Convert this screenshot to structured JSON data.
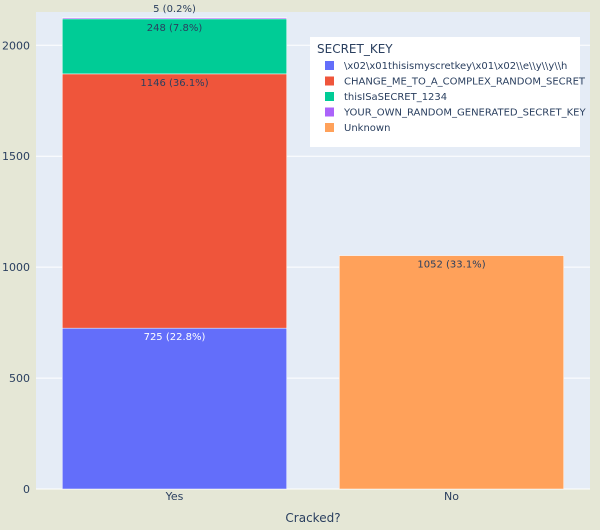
{
  "chart_data": {
    "type": "bar",
    "stacked": true,
    "categories": [
      "Yes",
      "No"
    ],
    "xlabel": "Cracked?",
    "ylabel": "",
    "ylim": [
      0,
      2150
    ],
    "yticks": [
      0,
      500,
      1000,
      1500,
      2000
    ],
    "grid": true,
    "legend": {
      "title": "SECRET_KEY",
      "placement": "top-right"
    },
    "series": [
      {
        "name": "\\x02\\x01thisismyscretkey\\x01\\x02\\\\e\\\\y\\\\y\\\\h",
        "color": "#636efa",
        "values": [
          725,
          0
        ],
        "labels": [
          "725 (22.8%)",
          ""
        ]
      },
      {
        "name": "CHANGE_ME_TO_A_COMPLEX_RANDOM_SECRET",
        "color": "#ef553b",
        "values": [
          1146,
          0
        ],
        "labels": [
          "1146 (36.1%)",
          ""
        ]
      },
      {
        "name": "thisISaSECRET_1234",
        "color": "#00cc96",
        "values": [
          248,
          0
        ],
        "labels": [
          "248 (7.8%)",
          ""
        ]
      },
      {
        "name": "YOUR_OWN_RANDOM_GENERATED_SECRET_KEY",
        "color": "#ab63fa",
        "values": [
          5,
          0
        ],
        "labels": [
          "5 (0.2%)",
          ""
        ]
      },
      {
        "name": "Unknown",
        "color": "#ffa15a",
        "values": [
          0,
          1052
        ],
        "labels": [
          "",
          "1052 (33.1%)"
        ]
      }
    ]
  }
}
